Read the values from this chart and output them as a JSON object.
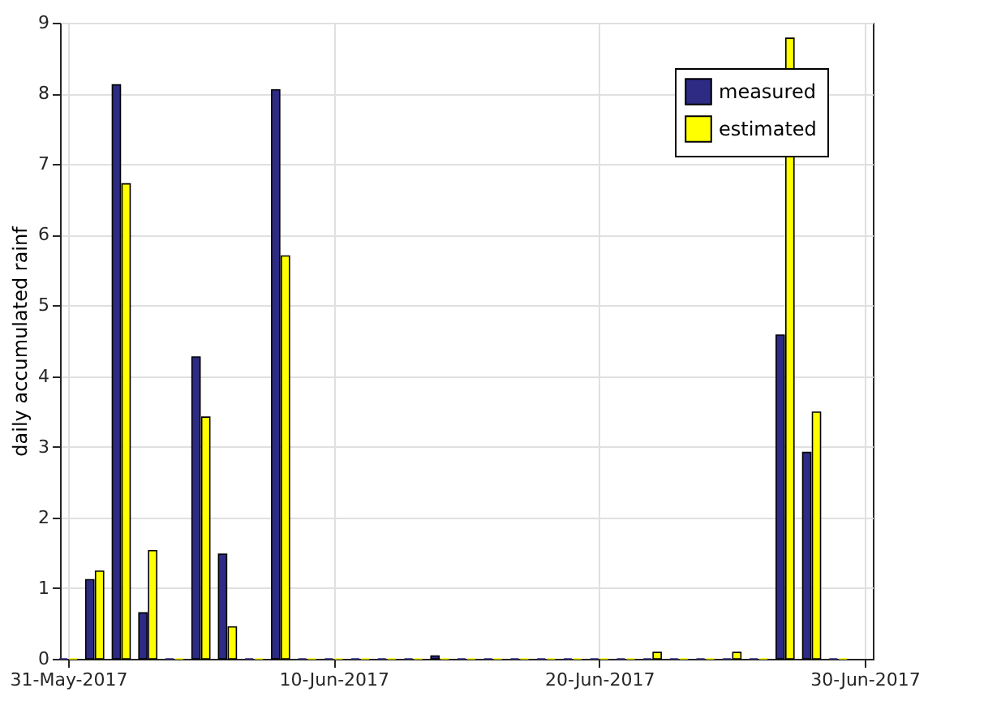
{
  "chart_data": {
    "type": "bar",
    "ylabel": "daily accumulated rainf",
    "x": [
      "2017-05-31",
      "2017-06-01",
      "2017-06-02",
      "2017-06-03",
      "2017-06-04",
      "2017-06-05",
      "2017-06-06",
      "2017-06-07",
      "2017-06-08",
      "2017-06-09",
      "2017-06-10",
      "2017-06-11",
      "2017-06-12",
      "2017-06-13",
      "2017-06-14",
      "2017-06-15",
      "2017-06-16",
      "2017-06-17",
      "2017-06-18",
      "2017-06-19",
      "2017-06-20",
      "2017-06-21",
      "2017-06-22",
      "2017-06-23",
      "2017-06-24",
      "2017-06-25",
      "2017-06-26",
      "2017-06-27",
      "2017-06-28",
      "2017-06-29"
    ],
    "series": [
      {
        "name": "measured",
        "color": "#2d2b83",
        "values": [
          0,
          1.12,
          8.12,
          0.65,
          0,
          4.27,
          1.48,
          0,
          8.05,
          0,
          0,
          0,
          0,
          0,
          0.04,
          0,
          0,
          0,
          0,
          0,
          0,
          0,
          0,
          0,
          0,
          0,
          0,
          4.58,
          2.92,
          0
        ]
      },
      {
        "name": "estimated",
        "color": "#ffff00",
        "values": [
          0,
          1.24,
          6.72,
          1.53,
          0,
          3.42,
          0.45,
          0,
          5.7,
          0,
          0,
          0,
          0,
          0,
          0,
          0,
          0,
          0,
          0,
          0,
          0,
          0,
          0.09,
          0,
          0,
          0.09,
          0,
          8.78,
          3.49,
          0
        ]
      }
    ],
    "xlim": [
      "2017-05-31",
      "2017-06-30"
    ],
    "xticks": [
      {
        "value": "2017-05-31",
        "label": "31-May-2017"
      },
      {
        "value": "2017-06-10",
        "label": "10-Jun-2017"
      },
      {
        "value": "2017-06-20",
        "label": "20-Jun-2017"
      },
      {
        "value": "2017-06-30",
        "label": "30-Jun-2017"
      }
    ],
    "ylim": [
      0,
      9
    ],
    "yticks": [
      0,
      1,
      2,
      3,
      4,
      5,
      6,
      7,
      8,
      9
    ],
    "grid": true,
    "legend": "top right"
  }
}
